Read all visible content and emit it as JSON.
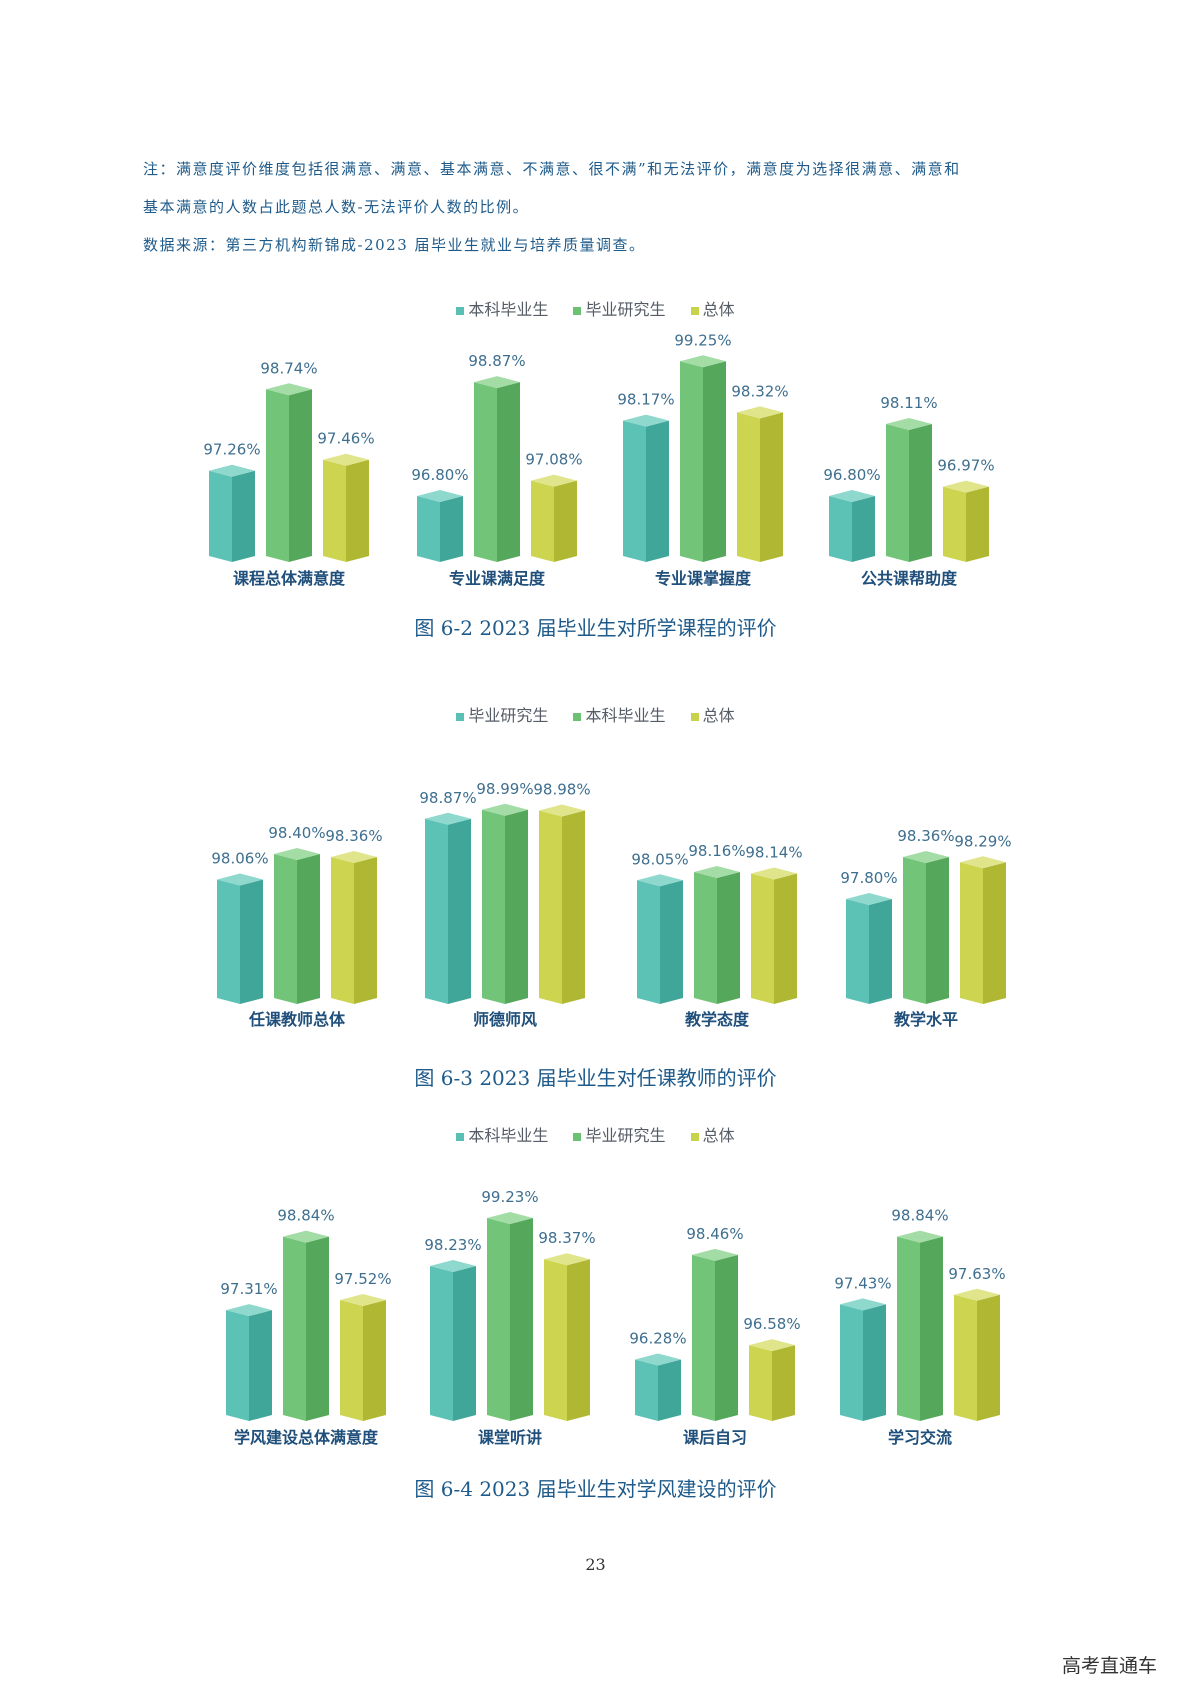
{
  "notes": [
    "注：满意度评价维度包括很满意、满意、基本满意、不满意、很不满”和无法评价，满意度为选择很满意、满意和",
    "基本满意的人数占此题总人数-无法评价人数的比例。",
    "数据来源：第三方机构新锦成-2023 届毕业生就业与培养质量调查。"
  ],
  "colors": {
    "teal": "#5bbfb4",
    "green": "#6cc172",
    "yellow": "#c8d24a"
  },
  "chart_data": [
    {
      "type": "bar",
      "title": "图 6-2  2023 届毕业生对所学课程的评价",
      "categories": [
        "课程总体满意度",
        "专业课满足度",
        "专业课掌握度",
        "公共课帮助度"
      ],
      "series": [
        {
          "name": "本科毕业生",
          "color": "teal",
          "values": [
            97.26,
            96.8,
            98.17,
            96.8
          ],
          "labels": [
            "97.26%",
            "96.80%",
            "98.17%",
            "96.80%"
          ]
        },
        {
          "name": "毕业研究生",
          "color": "green",
          "values": [
            98.74,
            98.87,
            99.25,
            98.11
          ],
          "labels": [
            "98.74%",
            "98.87%",
            "99.25%",
            "98.11%"
          ]
        },
        {
          "name": "总体",
          "color": "yellow",
          "values": [
            97.46,
            97.08,
            98.32,
            96.97
          ],
          "labels": [
            "97.46%",
            "97.08%",
            "98.32%",
            "96.97%"
          ]
        }
      ],
      "legend_position": "top-center",
      "grid": false
    },
    {
      "type": "bar",
      "title": "图 6-3  2023 届毕业生对任课教师的评价",
      "categories": [
        "任课教师总体",
        "师德师风",
        "教学态度",
        "教学水平"
      ],
      "series": [
        {
          "name": "毕业研究生",
          "color": "teal",
          "values": [
            98.06,
            98.87,
            98.05,
            97.8
          ],
          "labels": [
            "98.06%",
            "98.87%",
            "98.05%",
            "97.80%"
          ]
        },
        {
          "name": "本科毕业生",
          "color": "green",
          "values": [
            98.4,
            98.99,
            98.16,
            98.36
          ],
          "labels": [
            "98.40%",
            "98.99%",
            "98.16%",
            "98.36%"
          ]
        },
        {
          "name": "总体",
          "color": "yellow",
          "values": [
            98.36,
            98.98,
            98.14,
            98.29
          ],
          "labels": [
            "98.36%",
            "98.98%",
            "98.14%",
            "98.29%"
          ]
        }
      ],
      "legend_position": "top-center",
      "grid": false
    },
    {
      "type": "bar",
      "title": "图 6-4  2023 届毕业生对学风建设的评价",
      "categories": [
        "学风建设总体满意度",
        "课堂听讲",
        "课后自习",
        "学习交流"
      ],
      "series": [
        {
          "name": "本科毕业生",
          "color": "teal",
          "values": [
            97.31,
            98.23,
            96.28,
            97.43
          ],
          "labels": [
            "97.31%",
            "98.23%",
            "96.28%",
            "97.43%"
          ]
        },
        {
          "name": "毕业研究生",
          "color": "green",
          "values": [
            98.84,
            99.23,
            98.46,
            98.84
          ],
          "labels": [
            "98.84%",
            "99.23%",
            "98.46%",
            "98.84%"
          ]
        },
        {
          "name": "总体",
          "color": "yellow",
          "values": [
            97.52,
            98.37,
            96.58,
            97.63
          ],
          "labels": [
            "97.52%",
            "98.37%",
            "96.58%",
            "97.63%"
          ]
        }
      ],
      "legend_position": "top-center",
      "grid": false
    }
  ],
  "page_number": "23",
  "watermark": "高考直通车"
}
